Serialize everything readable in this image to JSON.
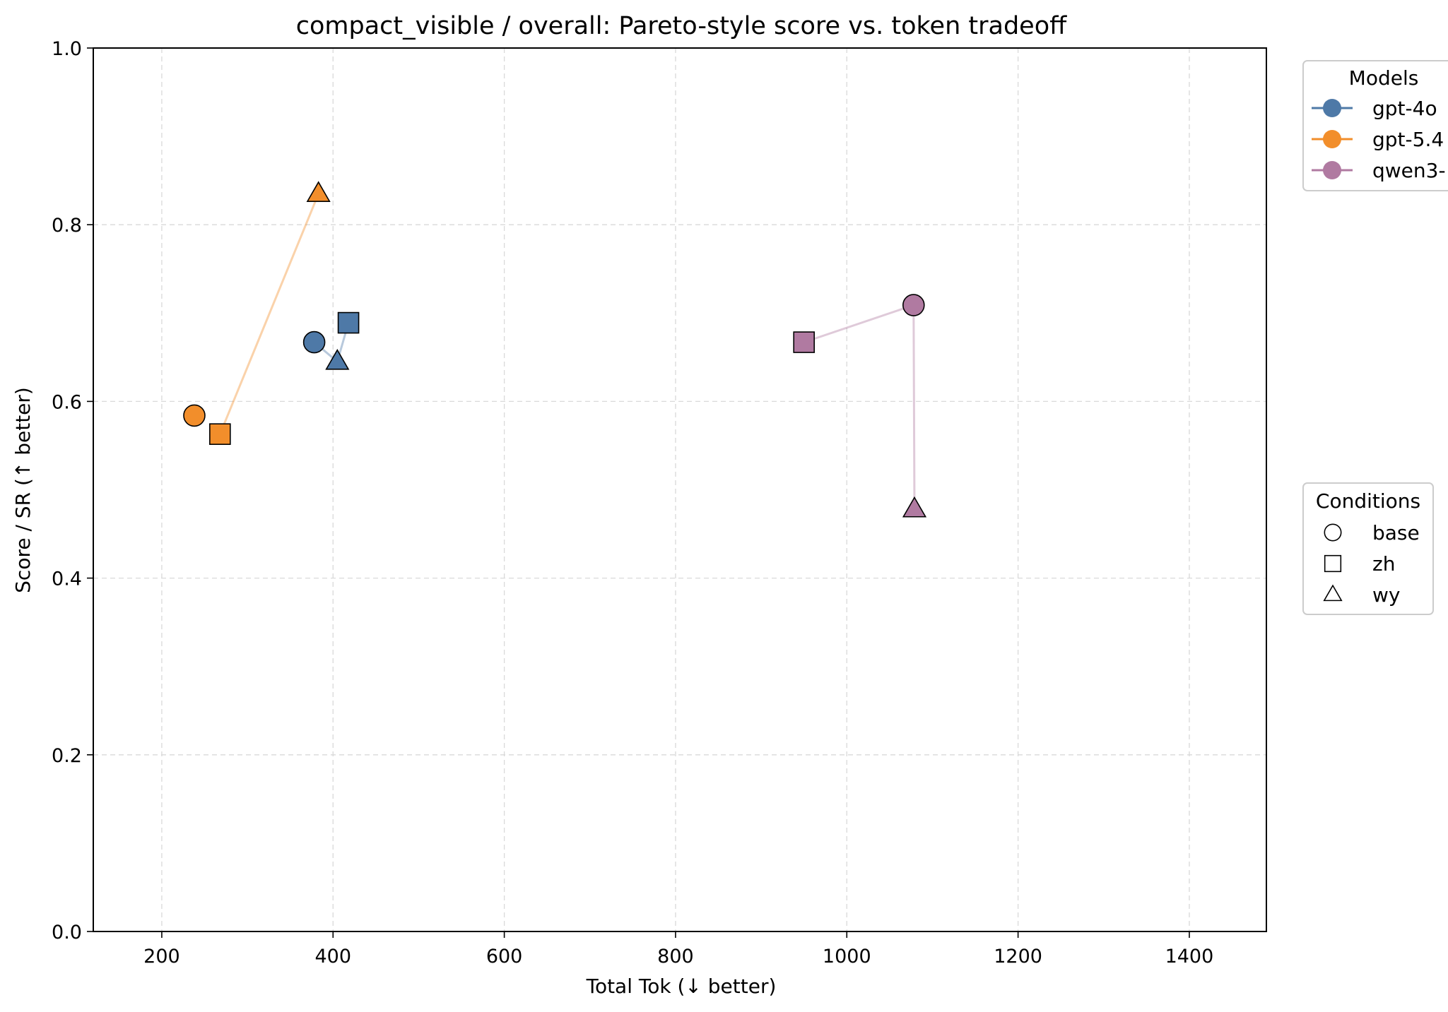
{
  "chart_data": {
    "type": "scatter",
    "title": "compact_visible / overall: Pareto-style score vs. token tradeoff",
    "xlabel": "Total Tok (↓ better)",
    "ylabel": "Score / SR (↑ better)",
    "xlim": [
      120,
      1490
    ],
    "ylim": [
      0,
      1.0
    ],
    "xticks": [
      200,
      400,
      600,
      800,
      1000,
      1200,
      1400
    ],
    "yticks": [
      0.0,
      0.2,
      0.4,
      0.6,
      0.8,
      1.0
    ],
    "xtick_labels": [
      "200",
      "400",
      "600",
      "800",
      "1000",
      "1200",
      "1400"
    ],
    "ytick_labels": [
      "0.0",
      "0.2",
      "0.4",
      "0.6",
      "0.8",
      "1.0"
    ],
    "grid": true,
    "series": [
      {
        "name": "gpt-4o",
        "color": "#4e79a7",
        "points": [
          {
            "condition": "base",
            "x": 378,
            "y": 0.667
          },
          {
            "condition": "zh",
            "x": 418,
            "y": 0.689
          },
          {
            "condition": "wy",
            "x": 405,
            "y": 0.645
          }
        ]
      },
      {
        "name": "gpt-5.4",
        "color": "#f28e2b",
        "points": [
          {
            "condition": "base",
            "x": 238,
            "y": 0.584
          },
          {
            "condition": "zh",
            "x": 268,
            "y": 0.563
          },
          {
            "condition": "wy",
            "x": 383,
            "y": 0.835
          }
        ]
      },
      {
        "name": "qwen3-",
        "color": "#b07aa1",
        "points": [
          {
            "condition": "base",
            "x": 1078,
            "y": 0.709
          },
          {
            "condition": "zh",
            "x": 950,
            "y": 0.667
          },
          {
            "condition": "wy",
            "x": 1079,
            "y": 0.478
          }
        ]
      }
    ],
    "legend_models": {
      "title": "Models",
      "entries": [
        "gpt-4o",
        "gpt-5.4",
        "qwen3-"
      ],
      "placement": "outside-top-right"
    },
    "legend_conditions": {
      "title": "Conditions",
      "entries": [
        {
          "label": "base",
          "marker": "circle"
        },
        {
          "label": "zh",
          "marker": "square"
        },
        {
          "label": "wy",
          "marker": "triangle"
        }
      ],
      "placement": "outside-middle-right"
    }
  }
}
